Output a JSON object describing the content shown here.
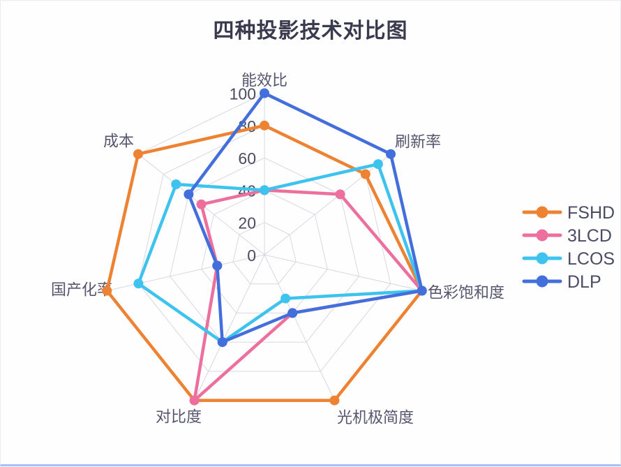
{
  "title": "四种投影技术对比图",
  "chart_data": {
    "type": "radar",
    "title": "四种投影技术对比图",
    "indicators": [
      "能效比",
      "刷新率",
      "色彩饱和度",
      "光机极简度",
      "对比度",
      "国产化率",
      "成本"
    ],
    "axis_min": 0,
    "axis_max": 100,
    "tick_interval": 20,
    "tick_labels": [
      0,
      20,
      40,
      60,
      80,
      100
    ],
    "grid": "concentric-heptagons-with-spokes",
    "grid_color": "#d7d7e1",
    "legend_position": "right",
    "text_color": "#4b4b62",
    "series": [
      {
        "name": "FSHD",
        "color": "#ee8233",
        "values": [
          80,
          80,
          100,
          100,
          100,
          100,
          100
        ]
      },
      {
        "name": "3LCD",
        "color": "#ed6f9d",
        "values": [
          40,
          60,
          100,
          40,
          100,
          30,
          50
        ]
      },
      {
        "name": "LCOS",
        "color": "#3ec2ee",
        "values": [
          40,
          90,
          100,
          30,
          60,
          80,
          70
        ]
      },
      {
        "name": "DLP",
        "color": "#426fdb",
        "values": [
          100,
          100,
          100,
          40,
          60,
          30,
          60
        ]
      }
    ]
  }
}
